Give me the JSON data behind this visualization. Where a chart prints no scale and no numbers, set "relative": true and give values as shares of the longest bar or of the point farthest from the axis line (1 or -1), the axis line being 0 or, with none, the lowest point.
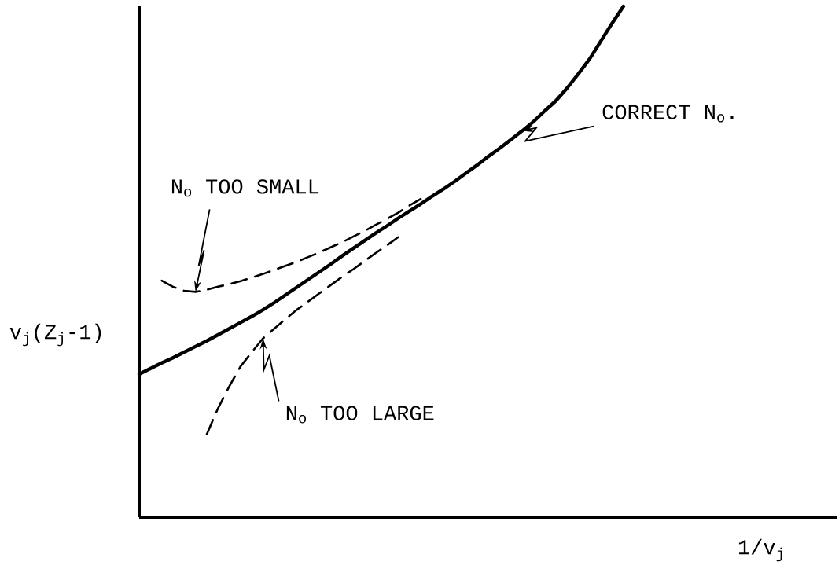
{
  "chart_data": {
    "type": "line",
    "relative": true,
    "legend": false,
    "marker": "none",
    "xlabel": "1/v$_{j}$",
    "ylabel": "v$_{j}$(Z$_{j}$-1)",
    "categories": [
      null,
      null,
      null,
      null,
      null,
      null,
      null,
      null,
      null,
      null,
      null,
      null,
      null,
      null,
      null,
      null,
      null,
      null,
      null,
      null,
      null,
      null,
      null,
      null,
      null,
      null,
      null,
      null,
      null,
      null,
      null,
      null,
      null,
      null,
      null,
      null,
      null,
      null,
      null,
      null,
      null,
      null,
      null,
      null,
      null,
      null,
      null,
      null,
      null,
      null,
      null,
      null,
      null,
      null,
      null,
      null,
      null,
      null,
      null,
      null,
      null,
      null,
      null
    ],
    "series": [
      {
        "name": "CORRECT N$_{o}$.",
        "color": "#000000",
        "line_style": "solid",
        "values": [
          0.28,
          0.291,
          0.302,
          0.312,
          0.323,
          0.334,
          0.345,
          0.357,
          0.369,
          0.381,
          0.393,
          0.406,
          0.42,
          0.435,
          0.45,
          0.465,
          0.48,
          0.495,
          0.511,
          0.526,
          0.541,
          0.556,
          0.57,
          0.585,
          0.599,
          0.613,
          0.628,
          0.642,
          0.657,
          0.673,
          0.689,
          0.706,
          0.722,
          0.739,
          0.756,
          0.774,
          0.795,
          0.815,
          0.84,
          0.868,
          0.897,
          0.932,
          0.967,
          1.0,
          null,
          null,
          null,
          null,
          null,
          null,
          null,
          null,
          null,
          null,
          null,
          null,
          null,
          null,
          null,
          null,
          null,
          null,
          null
        ]
      },
      {
        "name": "N$_{o}$ TOO SMALL",
        "color": "#000000",
        "line_style": "dashed",
        "values": [
          null,
          null,
          0.463,
          0.451,
          0.443,
          0.441,
          0.445,
          0.451,
          0.456,
          0.462,
          0.469,
          0.476,
          0.484,
          0.492,
          0.5,
          0.509,
          0.518,
          0.528,
          0.538,
          0.549,
          0.56,
          0.572,
          0.584,
          0.596,
          0.61,
          0.623,
          null,
          null,
          null,
          null,
          null,
          null,
          null,
          null,
          null,
          null,
          null,
          null,
          null,
          null,
          null,
          null,
          null,
          null,
          null,
          null,
          null,
          null,
          null,
          null,
          null,
          null,
          null,
          null,
          null,
          null,
          null,
          null,
          null,
          null,
          null,
          null,
          null
        ]
      },
      {
        "name": "N$_{o}$ TOO LARGE",
        "color": "#000000",
        "line_style": "dashed",
        "values": [
          null,
          null,
          null,
          null,
          null,
          null,
          0.162,
          0.213,
          0.256,
          0.295,
          0.323,
          0.35,
          0.369,
          0.388,
          0.406,
          0.422,
          0.438,
          0.454,
          0.47,
          0.485,
          0.501,
          0.517,
          0.532,
          0.548,
          null,
          null,
          null,
          null,
          null,
          null,
          null,
          null,
          null,
          null,
          null,
          null,
          null,
          null,
          null,
          null,
          null,
          null,
          null,
          null,
          null,
          null,
          null,
          null,
          null,
          null,
          null,
          null,
          null,
          null,
          null,
          null,
          null,
          null,
          null,
          null,
          null,
          null,
          null
        ]
      }
    ]
  }
}
